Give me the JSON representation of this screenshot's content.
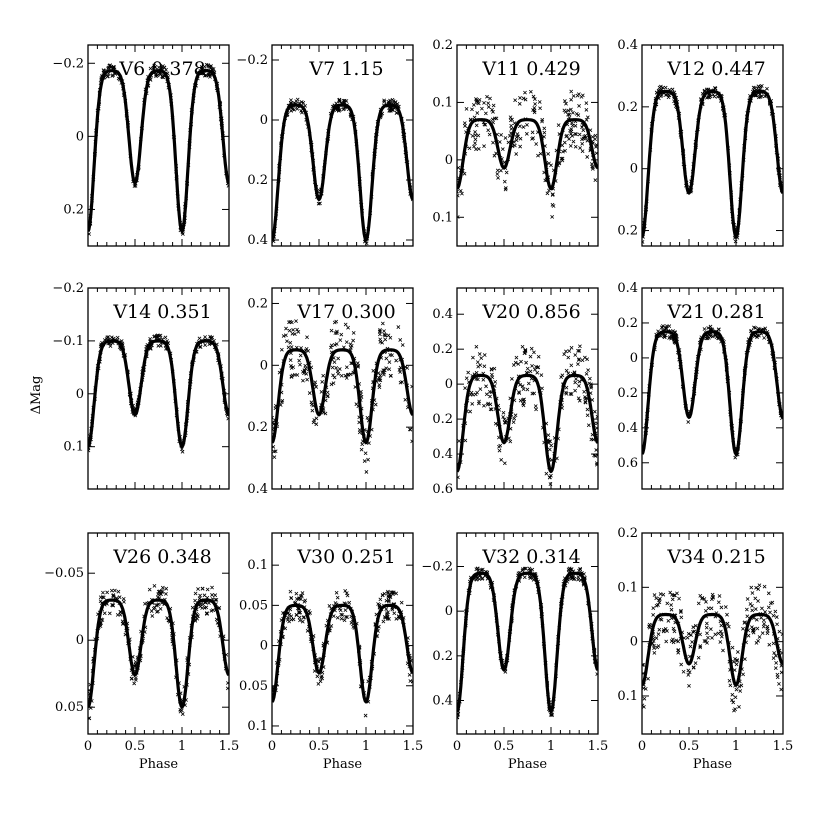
{
  "figure": {
    "ylabel": "ΔMag",
    "xlabel": "Phase",
    "x_ticks": [
      "0",
      "0.5",
      "1",
      "1.5"
    ]
  },
  "chart_data": [
    {
      "type": "scatter",
      "title": "V6 0.378",
      "xlim": [
        0,
        1.5
      ],
      "ylim": [
        0.3,
        -0.25
      ],
      "y_inverted": true,
      "y_ticks": [
        -0.2,
        0,
        0.2
      ],
      "y_tick_labels": [
        "−0.2",
        "0",
        "0.2"
      ],
      "period_days": 0.378,
      "amplitude": [
        -0.18,
        0.26
      ],
      "scatter_level": "low"
    },
    {
      "type": "scatter",
      "title": "V7 1.15",
      "xlim": [
        0,
        1.5
      ],
      "ylim": [
        0.42,
        -0.25
      ],
      "y_inverted": true,
      "y_ticks": [
        -0.2,
        0,
        0.2,
        0.4
      ],
      "y_tick_labels": [
        "−0.2",
        "0",
        "0.2",
        "0.4"
      ],
      "period_days": 1.15,
      "amplitude": [
        -0.05,
        0.4
      ],
      "scatter_level": "low"
    },
    {
      "type": "scatter",
      "title": "V11 0.429",
      "xlim": [
        0,
        1.5
      ],
      "ylim": [
        0.15,
        -0.2
      ],
      "y_inverted": true,
      "y_ticks": [
        -0.2,
        -0.1,
        0,
        0.1
      ],
      "y_tick_labels": [
        "0.2",
        "0.1",
        "0",
        "0.1"
      ],
      "period_days": 0.429,
      "amplitude": [
        -0.07,
        0.05
      ],
      "scatter_level": "high"
    },
    {
      "type": "scatter",
      "title": "V12 0.447",
      "xlim": [
        0,
        1.5
      ],
      "ylim": [
        0.25,
        -0.4
      ],
      "y_inverted": true,
      "y_ticks": [
        -0.4,
        -0.2,
        0,
        0.2
      ],
      "y_tick_labels": [
        "0.4",
        "0.2",
        "0",
        "0.2"
      ],
      "period_days": 0.447,
      "amplitude": [
        -0.25,
        0.22
      ],
      "scatter_level": "low"
    },
    {
      "type": "scatter",
      "title": "V14 0.351",
      "xlim": [
        0,
        1.5
      ],
      "ylim": [
        0.18,
        -0.2
      ],
      "y_inverted": true,
      "y_ticks": [
        -0.2,
        -0.1,
        0,
        0.1
      ],
      "y_tick_labels": [
        "−0.2",
        "−0.1",
        "0",
        "0.1"
      ],
      "period_days": 0.351,
      "amplitude": [
        -0.1,
        0.1
      ],
      "scatter_level": "low"
    },
    {
      "type": "scatter",
      "title": "V17 0.300",
      "xlim": [
        0,
        1.5
      ],
      "ylim": [
        0.4,
        -0.25
      ],
      "y_inverted": true,
      "y_ticks": [
        -0.2,
        0,
        0.2,
        0.4
      ],
      "y_tick_labels": [
        "0.2",
        "0",
        "0.2",
        "0.4"
      ],
      "period_days": 0.3,
      "amplitude": [
        -0.05,
        0.25
      ],
      "scatter_level": "high"
    },
    {
      "type": "scatter",
      "title": "V20 0.856",
      "xlim": [
        0,
        1.5
      ],
      "ylim": [
        0.6,
        -0.55
      ],
      "y_inverted": true,
      "y_ticks": [
        -0.4,
        -0.2,
        0,
        0.2,
        0.4,
        0.6
      ],
      "y_tick_labels": [
        "0.4",
        "0.2",
        "0",
        "0.2",
        "0.4",
        "0.6"
      ],
      "period_days": 0.856,
      "amplitude": [
        -0.05,
        0.5
      ],
      "scatter_level": "high"
    },
    {
      "type": "scatter",
      "title": "V21 0.281",
      "xlim": [
        0,
        1.5
      ],
      "ylim": [
        0.75,
        -0.4
      ],
      "y_inverted": true,
      "y_ticks": [
        -0.4,
        -0.2,
        0,
        0.2,
        0.4,
        0.6
      ],
      "y_tick_labels": [
        "0.4",
        "0.2",
        "0",
        "0.2",
        "0.4",
        "0.6"
      ],
      "period_days": 0.281,
      "amplitude": [
        -0.15,
        0.55
      ],
      "scatter_level": "low"
    },
    {
      "type": "scatter",
      "title": "V26 0.348",
      "xlim": [
        0,
        1.5
      ],
      "ylim": [
        0.07,
        -0.08
      ],
      "y_inverted": true,
      "y_ticks": [
        -0.05,
        0,
        0.05
      ],
      "y_tick_labels": [
        "−0.05",
        "0",
        "0.05"
      ],
      "period_days": 0.348,
      "amplitude": [
        -0.03,
        0.05
      ],
      "scatter_level": "medium"
    },
    {
      "type": "scatter",
      "title": "V30 0.251",
      "xlim": [
        0,
        1.5
      ],
      "ylim": [
        0.11,
        -0.14
      ],
      "y_inverted": true,
      "y_ticks": [
        -0.1,
        -0.05,
        0,
        0.05,
        0.1
      ],
      "y_tick_labels": [
        "0.1",
        "0.05",
        "0",
        "0.05",
        "0.1"
      ],
      "period_days": 0.251,
      "amplitude": [
        -0.05,
        0.07
      ],
      "scatter_level": "medium"
    },
    {
      "type": "scatter",
      "title": "V32 0.314",
      "xlim": [
        0,
        1.5
      ],
      "ylim": [
        0.55,
        -0.35
      ],
      "y_inverted": true,
      "y_ticks": [
        -0.2,
        0,
        0.2,
        0.4
      ],
      "y_tick_labels": [
        "−0.2",
        "0",
        "0.2",
        "0.4"
      ],
      "period_days": 0.314,
      "amplitude": [
        -0.17,
        0.45
      ],
      "scatter_level": "low"
    },
    {
      "type": "scatter",
      "title": "V34 0.215",
      "xlim": [
        0,
        1.5
      ],
      "ylim": [
        0.17,
        -0.2
      ],
      "y_inverted": true,
      "y_ticks": [
        -0.2,
        -0.1,
        0,
        0.1
      ],
      "y_tick_labels": [
        "0.2",
        "0.1",
        "0",
        "0.1"
      ],
      "period_days": 0.215,
      "amplitude": [
        -0.05,
        0.08
      ],
      "scatter_level": "high"
    }
  ]
}
